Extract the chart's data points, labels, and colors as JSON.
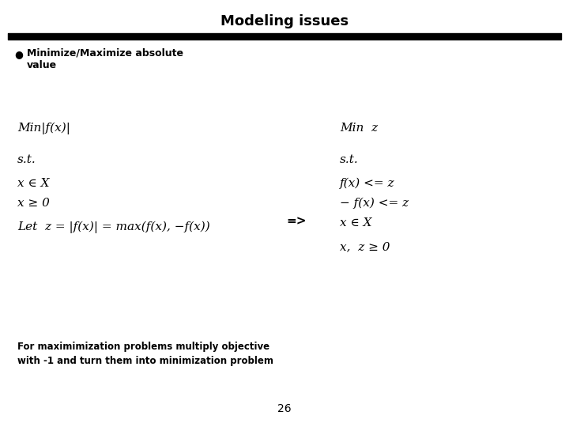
{
  "title": "Modeling issues",
  "title_fontsize": 13,
  "background_color": "#ffffff",
  "bullet_line1": "Minimize/Maximize absolute",
  "bullet_line2": "value",
  "left_math": [
    "Min|f(x)|",
    "s.t.",
    "x ∈ X",
    "x ≥ 0",
    "Let  z = |f(x)| = max(f(x), −f(x))"
  ],
  "right_math": [
    "Min  z",
    "s.t.",
    "f(x) <= z",
    "− f(x) <= z",
    "x ∈ X",
    "x,  z ≥ 0"
  ],
  "arrow_text": "=>",
  "bottom_text_line1": "For maximimization problems multiply objective",
  "bottom_text_line2": "with -1 and turn them into minimization problem",
  "page_number": "26",
  "bar_color": "#000000"
}
